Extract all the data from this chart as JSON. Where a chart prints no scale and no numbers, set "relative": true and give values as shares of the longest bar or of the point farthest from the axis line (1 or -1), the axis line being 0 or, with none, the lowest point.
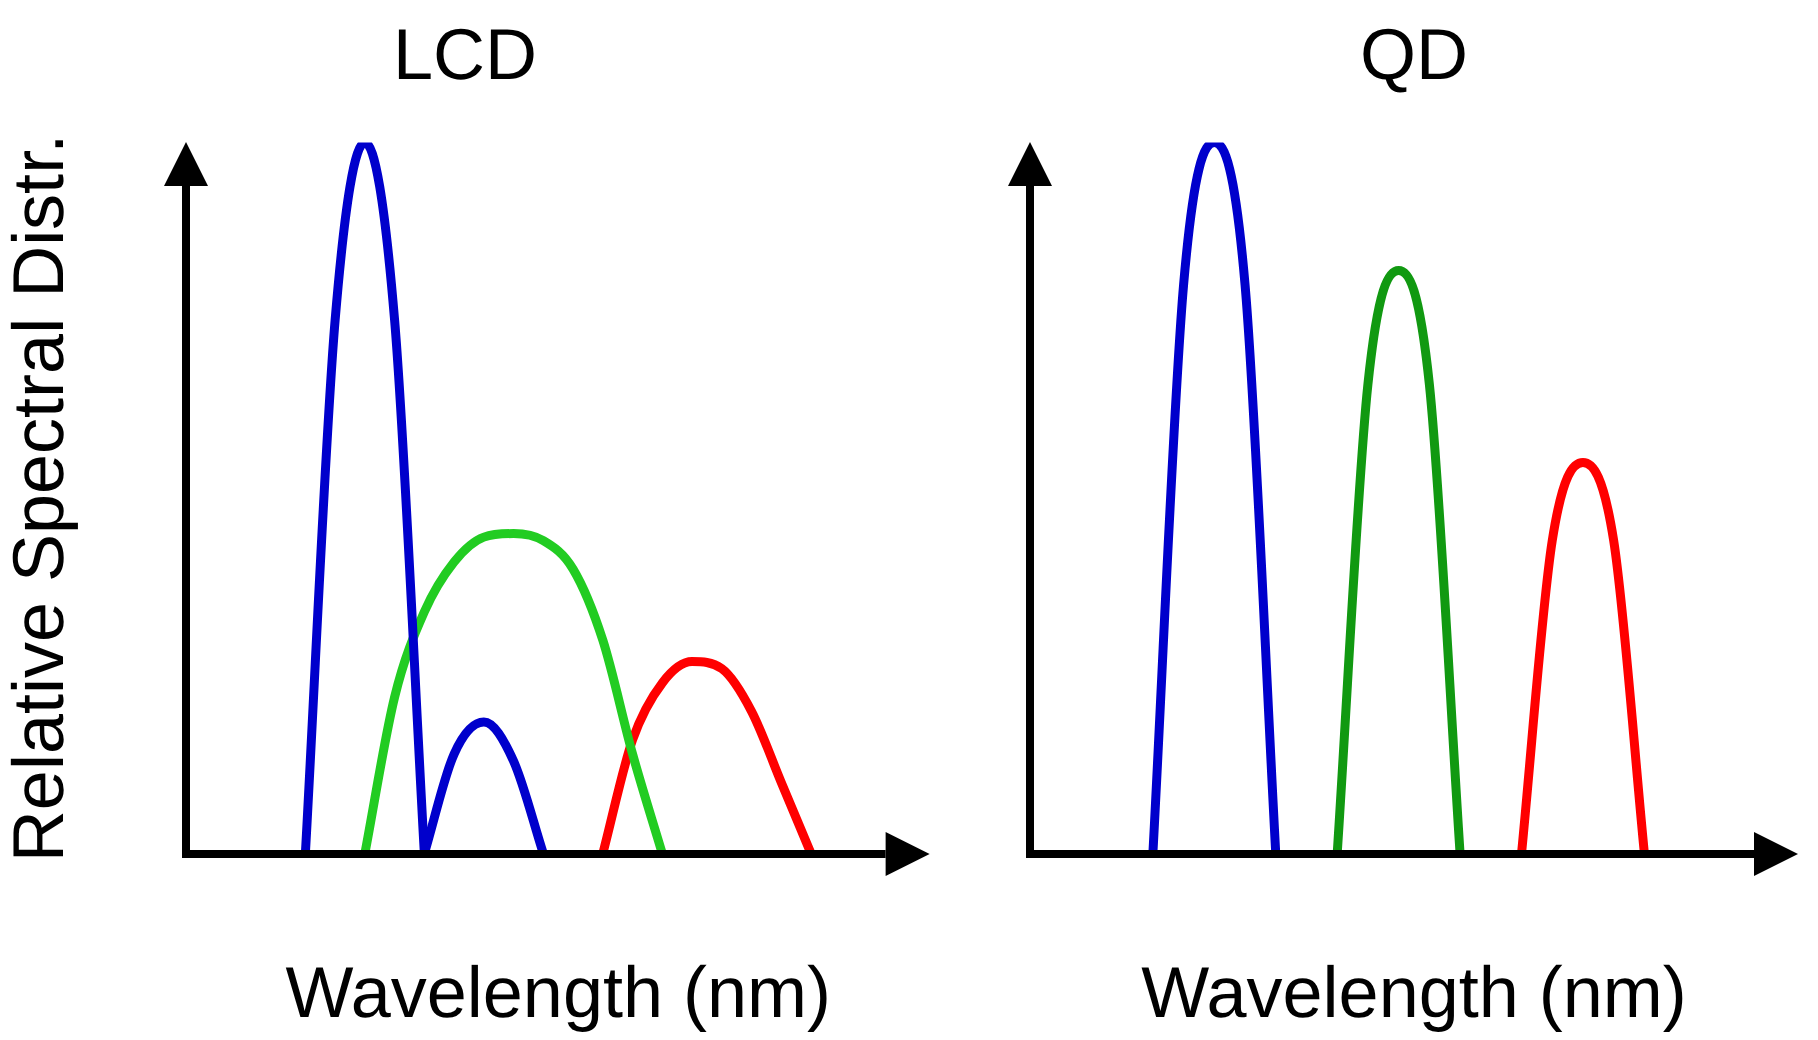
{
  "chart_data": [
    {
      "type": "line",
      "title": "LCD",
      "xlabel": "Wavelength (nm)",
      "ylabel": "Relative Spectral Distr.",
      "relative": true,
      "grid": false,
      "legend": false,
      "marker": "none",
      "line_style": "solid",
      "categories": [
        null,
        null,
        null,
        null,
        null,
        null,
        null,
        null,
        null,
        null,
        null,
        null,
        null,
        null,
        null,
        null,
        null,
        null,
        null,
        null,
        null,
        null,
        null,
        null,
        null,
        null
      ],
      "series": [
        {
          "color": "#0000cc",
          "values": [
            null,
            null,
            null,
            null,
            0,
            0.75,
            1,
            0.75,
            0,
            null,
            null,
            null,
            null,
            null,
            null,
            null,
            null,
            null,
            null,
            null,
            null,
            null,
            null,
            null,
            null,
            null
          ]
        },
        {
          "color": "#0000cc",
          "values": [
            null,
            null,
            null,
            null,
            null,
            null,
            null,
            null,
            0,
            0.14,
            0.185,
            0.13,
            0,
            null,
            null,
            null,
            null,
            null,
            null,
            null,
            null,
            null,
            null,
            null,
            null,
            null
          ]
        },
        {
          "color": "#22cc22",
          "values": [
            null,
            null,
            null,
            null,
            null,
            null,
            0,
            0.22,
            0.34,
            0.41,
            0.445,
            0.45,
            0.44,
            0.4,
            0.3,
            0.14,
            0,
            null,
            null,
            null,
            null,
            null,
            null,
            null,
            null,
            null
          ]
        },
        {
          "color": "#ff0000",
          "values": [
            null,
            null,
            null,
            null,
            null,
            null,
            null,
            null,
            null,
            null,
            null,
            null,
            null,
            null,
            0,
            0.16,
            0.24,
            0.27,
            0.26,
            0.2,
            0.1,
            0,
            null,
            null,
            null,
            null
          ]
        }
      ]
    },
    {
      "type": "line",
      "title": "QD",
      "xlabel": "Wavelength (nm)",
      "relative": true,
      "grid": false,
      "legend": false,
      "marker": "none",
      "line_style": "solid",
      "categories": [
        null,
        null,
        null,
        null,
        null,
        null,
        null,
        null,
        null,
        null,
        null,
        null,
        null,
        null,
        null,
        null,
        null,
        null,
        null,
        null,
        null,
        null,
        null,
        null,
        null,
        null
      ],
      "series": [
        {
          "color": "#0000cc",
          "values": [
            null,
            null,
            null,
            null,
            0,
            0.8,
            1,
            0.8,
            0,
            null,
            null,
            null,
            null,
            null,
            null,
            null,
            null,
            null,
            null,
            null,
            null,
            null,
            null,
            null,
            null,
            null
          ]
        },
        {
          "color": "#119911",
          "values": [
            null,
            null,
            null,
            null,
            null,
            null,
            null,
            null,
            null,
            null,
            0,
            0.66,
            0.82,
            0.66,
            0,
            null,
            null,
            null,
            null,
            null,
            null,
            null,
            null,
            null,
            null,
            null
          ]
        },
        {
          "color": "#ff0000",
          "values": [
            null,
            null,
            null,
            null,
            null,
            null,
            null,
            null,
            null,
            null,
            null,
            null,
            null,
            null,
            null,
            null,
            0,
            0.44,
            0.55,
            0.44,
            0,
            null,
            null,
            null,
            null,
            null
          ]
        }
      ]
    }
  ]
}
